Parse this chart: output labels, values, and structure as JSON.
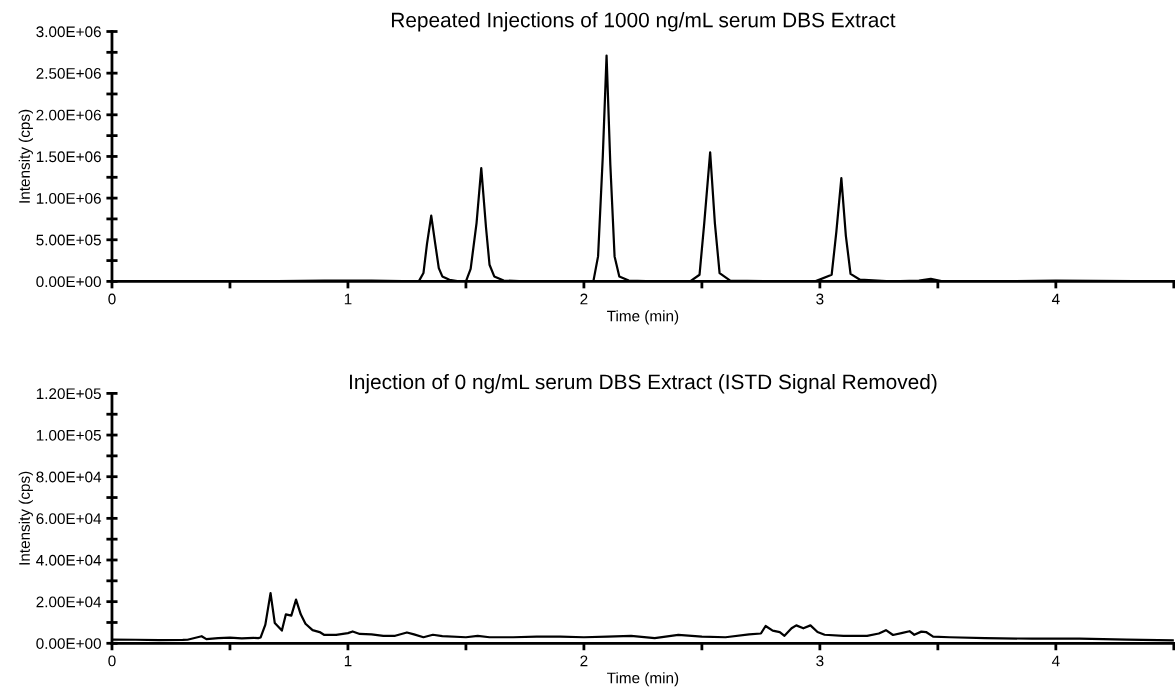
{
  "chart_data": [
    {
      "type": "line",
      "title": "Repeated Injections of 1000 ng/mL serum DBS Extract",
      "xlabel": "Time (min)",
      "ylabel": "Intensity (cps)",
      "series": [
        {
          "color": "#000000",
          "x": [
            0,
            0.3,
            0.6,
            0.9,
            1.1,
            1.3,
            1.32,
            1.335,
            1.353,
            1.37,
            1.385,
            1.4,
            1.43,
            1.47,
            1.5,
            1.52,
            1.545,
            1.565,
            1.585,
            1.6,
            1.62,
            1.66,
            1.75,
            1.9,
            2.04,
            2.06,
            2.08,
            2.096,
            2.112,
            2.13,
            2.15,
            2.19,
            2.3,
            2.45,
            2.49,
            2.51,
            2.535,
            2.555,
            2.575,
            2.62,
            2.8,
            2.98,
            3.05,
            3.07,
            3.091,
            3.11,
            3.13,
            3.17,
            3.3,
            3.42,
            3.47,
            3.52,
            3.7,
            4.0,
            4.5
          ],
          "values": [
            0,
            0,
            0,
            10000,
            10000,
            0,
            100000,
            450000,
            790000,
            450000,
            160000,
            60000,
            20000,
            0,
            0,
            150000,
            700000,
            1360000,
            650000,
            200000,
            60000,
            10000,
            0,
            0,
            0,
            300000,
            1500000,
            2710000,
            1400000,
            300000,
            60000,
            10000,
            0,
            0,
            80000,
            700000,
            1550000,
            700000,
            100000,
            10000,
            0,
            0,
            80000,
            600000,
            1240000,
            550000,
            90000,
            20000,
            0,
            10000,
            30000,
            0,
            0,
            10000,
            0
          ]
        }
      ],
      "xlim": [
        0,
        4.5
      ],
      "xticks": [
        0,
        {
          "value": 0.5,
          "label": null
        },
        1,
        {
          "value": 1.5,
          "label": null
        },
        2,
        {
          "value": 2.5,
          "label": null
        },
        3,
        {
          "value": 3.5,
          "label": null
        },
        4,
        {
          "value": 4.5,
          "label": null
        }
      ],
      "ylim": [
        0,
        3000000
      ],
      "yticks": [
        {
          "value": 0,
          "label": "0.00E+00"
        },
        {
          "value": 250000,
          "label": null
        },
        {
          "value": 500000,
          "label": "5.00E+05"
        },
        {
          "value": 750000,
          "label": null
        },
        {
          "value": 1000000,
          "label": "1.00E+06"
        },
        {
          "value": 1250000,
          "label": null
        },
        {
          "value": 1500000,
          "label": "1.50E+06"
        },
        {
          "value": 1750000,
          "label": null
        },
        {
          "value": 2000000,
          "label": "2.00E+06"
        },
        {
          "value": 2250000,
          "label": null
        },
        {
          "value": 2500000,
          "label": "2.50E+06"
        },
        {
          "value": 2750000,
          "label": null
        },
        {
          "value": 3000000,
          "label": "3.00E+06"
        }
      ]
    },
    {
      "type": "line",
      "title": "Injection of 0 ng/mL serum DBS Extract (ISTD Signal Removed)",
      "xlabel": "Time (min)",
      "ylabel": "Intensity (cps)",
      "series": [
        {
          "color": "#000000",
          "x": [
            0,
            0.1,
            0.2,
            0.3,
            0.32,
            0.38,
            0.4,
            0.45,
            0.5,
            0.55,
            0.6,
            0.62,
            0.63,
            0.65,
            0.672,
            0.69,
            0.72,
            0.737,
            0.76,
            0.78,
            0.8,
            0.82,
            0.85,
            0.88,
            0.9,
            0.95,
            1.0,
            1.02,
            1.05,
            1.1,
            1.15,
            1.2,
            1.25,
            1.28,
            1.32,
            1.36,
            1.4,
            1.5,
            1.55,
            1.6,
            1.7,
            1.8,
            1.9,
            2.0,
            2.1,
            2.2,
            2.3,
            2.4,
            2.5,
            2.6,
            2.7,
            2.75,
            2.77,
            2.8,
            2.83,
            2.85,
            2.88,
            2.9,
            2.93,
            2.96,
            2.99,
            3.02,
            3.1,
            3.2,
            3.25,
            3.28,
            3.31,
            3.35,
            3.38,
            3.4,
            3.43,
            3.45,
            3.48,
            3.55,
            3.7,
            3.9,
            4.1,
            4.3,
            4.5
          ],
          "values": [
            1800,
            1700,
            1500,
            1600,
            1700,
            3400,
            2000,
            2500,
            2700,
            2400,
            2600,
            2500,
            2800,
            9000,
            24100,
            9700,
            6100,
            13900,
            13300,
            21000,
            13900,
            9400,
            6300,
            5400,
            4000,
            4000,
            4900,
            5700,
            4500,
            4300,
            3600,
            3600,
            5200,
            4300,
            2900,
            4100,
            3400,
            2900,
            3600,
            2900,
            2900,
            3200,
            3200,
            2900,
            3200,
            3600,
            2500,
            4000,
            3200,
            2900,
            4300,
            4700,
            8300,
            6100,
            5400,
            3600,
            7200,
            8600,
            7200,
            8600,
            5400,
            4100,
            3600,
            3600,
            4700,
            6300,
            4000,
            5000,
            5800,
            4100,
            5600,
            5400,
            3200,
            2900,
            2500,
            2200,
            2200,
            1800,
            1400
          ]
        }
      ],
      "xlim": [
        0,
        4.5
      ],
      "xticks": [
        0,
        {
          "value": 0.5,
          "label": null
        },
        1,
        {
          "value": 1.5,
          "label": null
        },
        2,
        {
          "value": 2.5,
          "label": null
        },
        3,
        {
          "value": 3.5,
          "label": null
        },
        4,
        {
          "value": 4.5,
          "label": null
        }
      ],
      "ylim": [
        0,
        120000
      ],
      "yticks": [
        {
          "value": 0,
          "label": "0.00E+00"
        },
        {
          "value": 10000,
          "label": null
        },
        {
          "value": 20000,
          "label": "2.00E+04"
        },
        {
          "value": 30000,
          "label": null
        },
        {
          "value": 40000,
          "label": "4.00E+04"
        },
        {
          "value": 50000,
          "label": null
        },
        {
          "value": 60000,
          "label": "6.00E+04"
        },
        {
          "value": 70000,
          "label": null
        },
        {
          "value": 80000,
          "label": "8.00E+04"
        },
        {
          "value": 90000,
          "label": null
        },
        {
          "value": 100000,
          "label": "1.00E+05"
        },
        {
          "value": 110000,
          "label": null
        },
        {
          "value": 120000,
          "label": "1.20E+05"
        }
      ]
    }
  ]
}
